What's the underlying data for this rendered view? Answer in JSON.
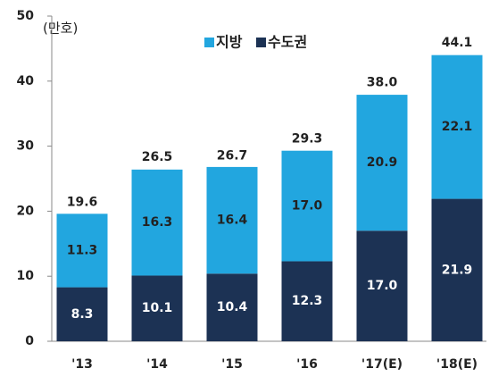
{
  "chart_data": {
    "type": "stacked-bar",
    "unit": "(만호)",
    "categories": [
      "'13",
      "'14",
      "'15",
      "'16",
      "'17(E)",
      "'18(E)"
    ],
    "series": [
      {
        "name": "수도권",
        "color": "#1c3254",
        "values": [
          8.3,
          10.1,
          10.4,
          12.3,
          17.0,
          21.9
        ],
        "value_labels": [
          "8.3",
          "10.1",
          "10.4",
          "12.3",
          "17.0",
          "21.9"
        ]
      },
      {
        "name": "지방",
        "color": "#22a6df",
        "values": [
          11.3,
          16.3,
          16.4,
          17.0,
          20.9,
          22.1
        ],
        "value_labels": [
          "11.3",
          "16.3",
          "16.4",
          "17.0",
          "20.9",
          "22.1"
        ]
      }
    ],
    "totals": [
      19.6,
      26.5,
      26.7,
      29.3,
      38.0,
      44.1
    ],
    "total_labels": [
      "19.6",
      "26.5",
      "26.7",
      "29.3",
      "38.0",
      "44.1"
    ],
    "ylim": [
      0,
      50
    ],
    "yticks": [
      0,
      10,
      20,
      30,
      40,
      50
    ],
    "grid": false
  }
}
